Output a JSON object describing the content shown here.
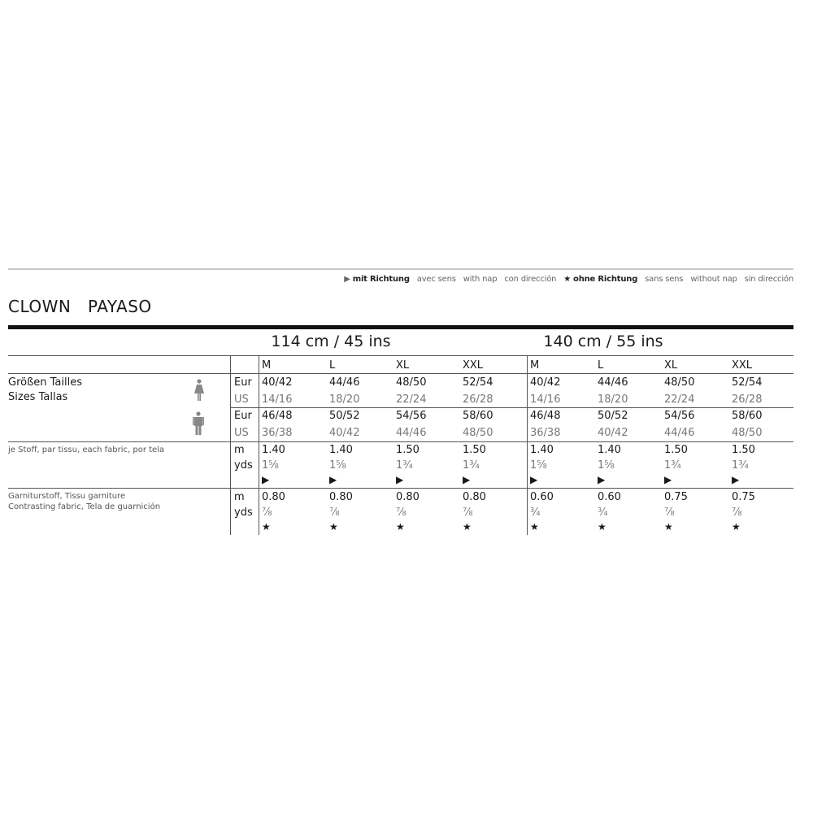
{
  "legend": {
    "with_nap_icon": "play-triangle-icon",
    "with_nap": [
      "mit Richtung",
      "avec sens",
      "with nap",
      "con dirección"
    ],
    "without_nap_icon": "star-icon",
    "without_nap": [
      "ohne Richtung",
      "sans sens",
      "without nap",
      "sin dirección"
    ]
  },
  "title": "CLOWN   PAYASO",
  "fabric_widths": [
    "114 cm / 45 ins",
    "140 cm / 55 ins"
  ],
  "sizes": [
    "M",
    "L",
    "XL",
    "XXL",
    "M",
    "L",
    "XL",
    "XXL"
  ],
  "size_label": [
    "Größen  Tailles",
    "Sizes   Tallas"
  ],
  "women": {
    "icon": "woman-figure-icon",
    "eur_label": "Eur",
    "us_label": "US",
    "eur": [
      "40/42",
      "44/46",
      "48/50",
      "52/54",
      "40/42",
      "44/46",
      "48/50",
      "52/54"
    ],
    "us": [
      "14/16",
      "18/20",
      "22/24",
      "26/28",
      "14/16",
      "18/20",
      "22/24",
      "26/28"
    ]
  },
  "men": {
    "icon": "man-figure-icon",
    "eur_label": "Eur",
    "us_label": "US",
    "eur": [
      "46/48",
      "50/52",
      "54/56",
      "58/60",
      "46/48",
      "50/52",
      "54/56",
      "58/60"
    ],
    "us": [
      "36/38",
      "40/42",
      "44/46",
      "48/50",
      "36/38",
      "40/42",
      "44/46",
      "48/50"
    ]
  },
  "main_fabric": {
    "label": "je Stoff, par tissu, each fabric, por tela",
    "m_label": "m",
    "yds_label": "yds",
    "m": [
      "1.40",
      "1.40",
      "1.50",
      "1.50",
      "1.40",
      "1.40",
      "1.50",
      "1.50"
    ],
    "yds": [
      "1⅝",
      "1⅝",
      "1¾",
      "1¾",
      "1⅝",
      "1⅝",
      "1¾",
      "1¾"
    ],
    "nap_symbol": "▶"
  },
  "contrast_fabric": {
    "label": [
      "Garniturstoff, Tissu garniture",
      "Contrasting fabric, Tela de guarnición"
    ],
    "m_label": "m",
    "yds_label": "yds",
    "m": [
      "0.80",
      "0.80",
      "0.80",
      "0.80",
      "0.60",
      "0.60",
      "0.75",
      "0.75"
    ],
    "yds": [
      "⅞",
      "⅞",
      "⅞",
      "⅞",
      "¾",
      "¾",
      "⅞",
      "⅞"
    ],
    "nap_symbol": "★"
  }
}
